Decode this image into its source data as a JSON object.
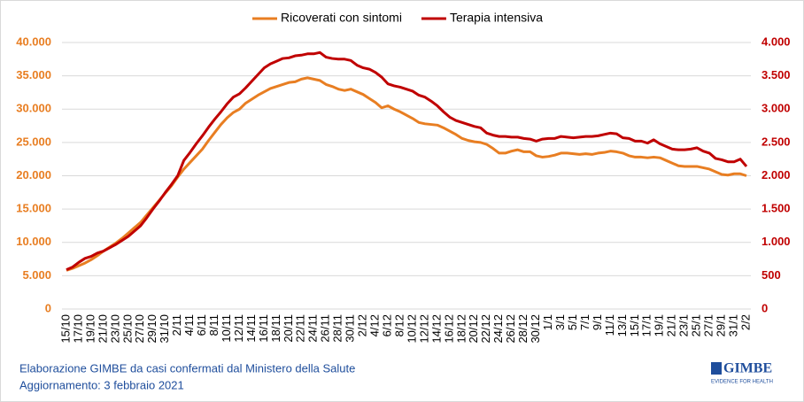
{
  "chart_data": {
    "type": "line",
    "categories": [
      "15/10",
      null,
      "17/10",
      null,
      "19/10",
      null,
      "21/10",
      null,
      "23/10",
      null,
      "25/10",
      null,
      "27/10",
      null,
      "29/10",
      null,
      "31/10",
      null,
      "2/11",
      null,
      "4/11",
      null,
      "6/11",
      null,
      "8/11",
      null,
      "10/11",
      null,
      "12/11",
      null,
      "14/11",
      null,
      "16/11",
      null,
      "18/11",
      null,
      "20/11",
      null,
      "22/11",
      null,
      "24/11",
      null,
      "26/11",
      null,
      "28/11",
      null,
      "30/11",
      null,
      "2/12",
      null,
      "4/12",
      null,
      "6/12",
      null,
      "8/12",
      null,
      "10/12",
      null,
      "12/12",
      null,
      "14/12",
      null,
      "16/12",
      null,
      "18/12",
      null,
      "20/12",
      null,
      "22/12",
      null,
      "24/12",
      null,
      "26/12",
      null,
      "28/12",
      null,
      "30/12",
      null,
      "1/1",
      null,
      "3/1",
      null,
      "5/1",
      null,
      "7/1",
      null,
      "9/1",
      null,
      "11/1",
      null,
      "13/1",
      null,
      "15/1",
      null,
      "17/1",
      null,
      "19/1",
      null,
      "21/1",
      null,
      "23/1",
      null,
      "25/1",
      null,
      "27/1",
      null,
      "29/1",
      null,
      "31/1",
      null,
      "2/2"
    ],
    "series": [
      {
        "name": "Ricoverati con sintomi",
        "color": "#e87e22",
        "axis": "y",
        "values": [
          5800,
          6100,
          6500,
          6900,
          7400,
          8000,
          8700,
          9300,
          9900,
          10600,
          11400,
          12200,
          13000,
          14100,
          15200,
          16300,
          17400,
          18500,
          19800,
          21000,
          22000,
          23000,
          24000,
          25300,
          26500,
          27700,
          28700,
          29500,
          30000,
          30900,
          31500,
          32100,
          32600,
          33100,
          33400,
          33700,
          34000,
          34100,
          34500,
          34700,
          34500,
          34300,
          33700,
          33400,
          33000,
          32800,
          33000,
          32600,
          32200,
          31600,
          31000,
          30200,
          30500,
          30000,
          29600,
          29100,
          28600,
          28000,
          27800,
          27700,
          27600,
          27200,
          26700,
          26200,
          25600,
          25300,
          25100,
          25000,
          24700,
          24100,
          23400,
          23400,
          23700,
          23900,
          23600,
          23600,
          23000,
          22800,
          22900,
          23100,
          23400,
          23400,
          23300,
          23200,
          23300,
          23200,
          23400,
          23500,
          23700,
          23600,
          23400,
          23000,
          22800,
          22800,
          22700,
          22800,
          22700,
          22300,
          21900,
          21500,
          21400,
          21400,
          21400,
          21200,
          21000,
          20600,
          20200,
          20100,
          20300,
          20300,
          20000
        ]
      },
      {
        "name": "Terapia intensiva",
        "color": "#c00000",
        "axis": "y2",
        "values": [
          590,
          630,
          700,
          760,
          790,
          840,
          870,
          920,
          970,
          1030,
          1090,
          1170,
          1250,
          1370,
          1500,
          1620,
          1750,
          1870,
          2000,
          2230,
          2350,
          2480,
          2600,
          2730,
          2850,
          2960,
          3080,
          3180,
          3230,
          3320,
          3420,
          3520,
          3620,
          3680,
          3720,
          3760,
          3770,
          3800,
          3810,
          3830,
          3830,
          3850,
          3780,
          3760,
          3750,
          3750,
          3730,
          3660,
          3620,
          3600,
          3550,
          3480,
          3380,
          3350,
          3330,
          3300,
          3270,
          3210,
          3180,
          3120,
          3050,
          2960,
          2880,
          2830,
          2800,
          2770,
          2740,
          2720,
          2640,
          2610,
          2590,
          2590,
          2580,
          2580,
          2560,
          2550,
          2520,
          2550,
          2560,
          2560,
          2590,
          2580,
          2570,
          2580,
          2590,
          2590,
          2600,
          2620,
          2640,
          2630,
          2570,
          2560,
          2520,
          2520,
          2490,
          2540,
          2480,
          2440,
          2400,
          2390,
          2390,
          2400,
          2420,
          2370,
          2340,
          2260,
          2240,
          2210,
          2210,
          2250,
          2140
        ]
      }
    ],
    "ylim": [
      0,
      40000
    ],
    "yticks": [
      0,
      {
        "value": 5000,
        "label": "5.000"
      },
      {
        "value": 10000,
        "label": "10.000"
      },
      {
        "value": 15000,
        "label": "15.000"
      },
      {
        "value": 20000,
        "label": "20.000"
      },
      {
        "value": 25000,
        "label": "25.000"
      },
      {
        "value": 30000,
        "label": "30.000"
      },
      {
        "value": 35000,
        "label": "35.000"
      },
      {
        "value": 40000,
        "label": "40.000"
      }
    ],
    "y2lim": [
      0,
      4000
    ],
    "y2ticks": [
      0,
      500,
      {
        "value": 1000,
        "label": "1.000"
      },
      {
        "value": 1500,
        "label": "1.500"
      },
      {
        "value": 2000,
        "label": "2.000"
      },
      {
        "value": 2500,
        "label": "2.500"
      },
      {
        "value": 3000,
        "label": "3.000"
      },
      {
        "value": 3500,
        "label": "3.500"
      },
      {
        "value": 4000,
        "label": "4.000"
      }
    ],
    "grid": true,
    "legend": "top"
  },
  "footer": {
    "line1": "Elaborazione GIMBE da casi confermati dal Ministero della Salute",
    "line2": "Aggiornamento: 3 febbraio 2021"
  },
  "logo": {
    "name": "GIMBE",
    "tagline": "EVIDENCE FOR HEALTH"
  }
}
